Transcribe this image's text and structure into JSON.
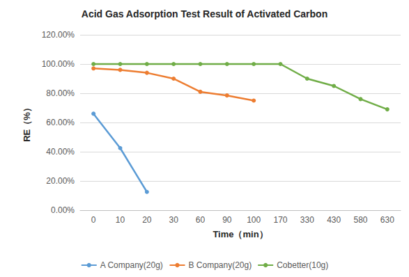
{
  "chart_data": {
    "type": "line",
    "title": "Acid Gas Adsorption Test Result of Activated Carbon",
    "x_label": "Time（min）",
    "y_label": "RE（%）",
    "categories": [
      "0",
      "10",
      "20",
      "30",
      "60",
      "90",
      "100",
      "170",
      "330",
      "430",
      "580",
      "630"
    ],
    "series": [
      {
        "name": "A Company(20g)",
        "color": "#5b9bd5",
        "values": [
          66,
          42.5,
          12.5,
          null,
          null,
          null,
          null,
          null,
          null,
          null,
          null,
          null
        ]
      },
      {
        "name": "B Company(20g)",
        "color": "#ed7d31",
        "values": [
          97,
          96,
          94,
          90,
          81,
          78.5,
          75,
          null,
          null,
          null,
          null,
          null
        ]
      },
      {
        "name": "Cobetter(10g)",
        "color": "#70ad47",
        "values": [
          100,
          100,
          100,
          100,
          100,
          100,
          100,
          100,
          90,
          85,
          76,
          69
        ]
      }
    ],
    "ylim": [
      0,
      120
    ],
    "yticks": [
      {
        "value": 0,
        "label": "0.00%"
      },
      {
        "value": 20,
        "label": "20.00%"
      },
      {
        "value": 40,
        "label": "40.00%"
      },
      {
        "value": 60,
        "label": "60.00%"
      },
      {
        "value": 80,
        "label": "80.00%"
      },
      {
        "value": 100,
        "label": "100.00%"
      },
      {
        "value": 120,
        "label": "120.00%"
      }
    ],
    "grid": true,
    "legend": "bottom",
    "marker": "circle"
  }
}
